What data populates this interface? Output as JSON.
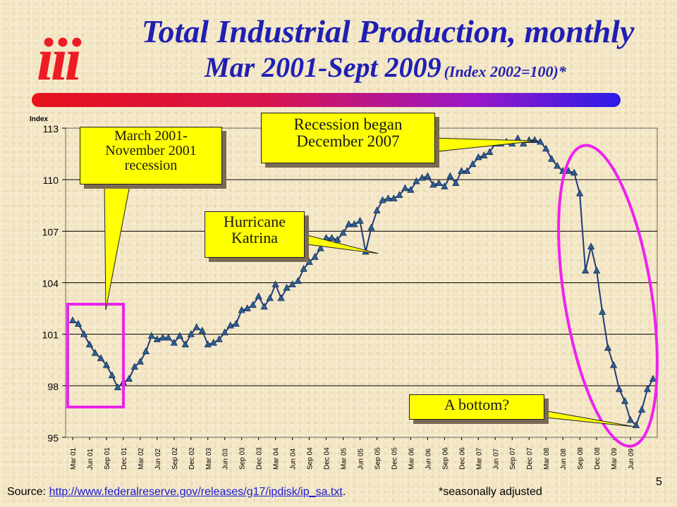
{
  "header": {
    "logo_text": "iii",
    "title_line1": "Total Industrial Production, monthly",
    "title_line2_main": "Mar 2001-Sept 2009",
    "title_line2_sub": "(Index 2002=100)*"
  },
  "callouts": {
    "recession_2001": "March 2001-\nNovember 2001\nrecession",
    "recession_2007": "Recession began\nDecember 2007",
    "katrina": "Hurricane\nKatrina",
    "bottom": "A bottom?"
  },
  "footer": {
    "source_label": "Source: ",
    "source_url": "http://www.federalreserve.gov/releases/g17/ipdisk/ip_sa.txt",
    "period": ".",
    "note": "*seasonally adjusted",
    "page_number": "5"
  },
  "colors": {
    "title": "#1f1fb4",
    "line": "#1f3a78",
    "marker": "#2c5f91",
    "highlight": "#ee22ee",
    "callout": "#ffff00"
  },
  "chart_data": {
    "type": "line",
    "ylabel": "Index",
    "ylim": [
      95,
      113
    ],
    "yticks": [
      95,
      98,
      101,
      104,
      107,
      110,
      113
    ],
    "grid": "horizontal",
    "x_tick_labels": [
      "Mar 01",
      "Jun 01",
      "Sep 01",
      "Dec 01",
      "Mar 02",
      "Jun 02",
      "Sep 02",
      "Dec 02",
      "Mar 03",
      "Jun 03",
      "Sep 03",
      "Dec 03",
      "Mar 04",
      "Jun 04",
      "Sep 04",
      "Dec 04",
      "Mar 05",
      "Jun 05",
      "Sep 05",
      "Dec 05",
      "Mar 06",
      "Jun 06",
      "Sep 06",
      "Dec 06",
      "Mar 07",
      "Jun 07",
      "Sep 07",
      "Dec 07",
      "Mar 08",
      "Jun 08",
      "Sep 08",
      "Dec 08",
      "Mar 09",
      "Jun 09"
    ],
    "x_start": "2001-03",
    "x_end": "2009-09",
    "values": [
      101.8,
      101.6,
      101.0,
      100.4,
      99.9,
      99.6,
      99.2,
      98.6,
      97.9,
      98.2,
      98.4,
      99.1,
      99.4,
      100.0,
      100.9,
      100.7,
      100.8,
      100.8,
      100.5,
      100.9,
      100.4,
      101.0,
      101.4,
      101.2,
      100.4,
      100.5,
      100.7,
      101.1,
      101.5,
      101.6,
      102.4,
      102.5,
      102.7,
      103.2,
      102.6,
      103.1,
      103.9,
      103.1,
      103.7,
      103.9,
      104.1,
      104.8,
      105.2,
      105.5,
      106.0,
      106.6,
      106.6,
      106.5,
      106.9,
      107.4,
      107.4,
      107.6,
      105.8,
      107.2,
      108.2,
      108.8,
      108.9,
      108.9,
      109.1,
      109.5,
      109.4,
      109.9,
      110.1,
      110.2,
      109.7,
      109.8,
      109.6,
      110.2,
      109.8,
      110.5,
      110.5,
      110.9,
      111.3,
      111.4,
      111.6,
      112.1,
      112.1,
      112.2,
      112.1,
      112.4,
      112.1,
      112.3,
      112.3,
      112.2,
      111.8,
      111.2,
      110.8,
      110.5,
      110.5,
      110.4,
      109.2,
      104.7,
      106.1,
      104.7,
      102.3,
      100.2,
      99.2,
      97.8,
      97.1,
      96.0,
      95.7,
      96.6,
      97.8,
      98.4
    ]
  }
}
